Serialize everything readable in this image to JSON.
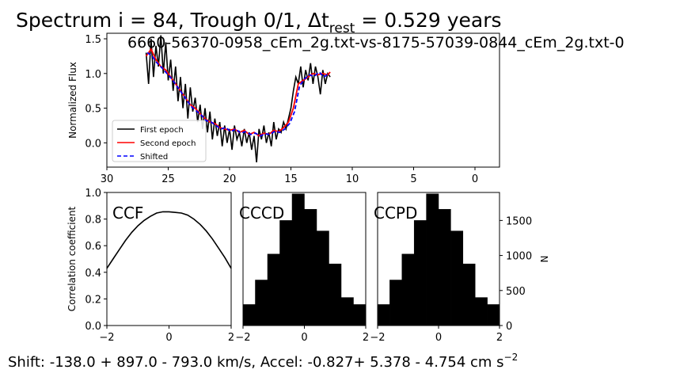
{
  "figure": {
    "title_main": "Spectrum i = 84, Trough 0/1, Δt",
    "title_sub": "rest",
    "title_tail": " = 0.529 years",
    "subtitle": "6660-56370-0958_cEm_2g.txt-vs-8175-57039-0844_cEm_2g.txt-0",
    "bottom_text": "Shift: -138.0 + 897.0 - 793.0 km/s, Accel: -0.827+ 5.378 - 4.754 cm s",
    "bottom_sup": "−2"
  },
  "chart_data": [
    {
      "type": "line",
      "id": "spectrum",
      "ylabel": "Normalized Flux",
      "xlim": [
        30,
        -2
      ],
      "ylim": [
        -0.35,
        1.58
      ],
      "xticks": [
        30,
        25,
        20,
        15,
        10,
        5,
        0
      ],
      "yticks": [
        0.0,
        0.5,
        1.0,
        1.5
      ],
      "xtick_labels": [
        "30",
        "25",
        "20",
        "15",
        "10",
        "5",
        "0"
      ],
      "ytick_labels": [
        "0.0",
        "0.5",
        "1.0",
        "1.5"
      ],
      "legend": {
        "position": "lower-left",
        "entries": [
          "First epoch",
          "Second epoch",
          "Shifted"
        ]
      },
      "series": [
        {
          "name": "First epoch",
          "color": "#000000",
          "style": "solid",
          "x": [
            26.8,
            26.6,
            26.4,
            26.2,
            26.0,
            25.8,
            25.6,
            25.4,
            25.2,
            25.0,
            24.8,
            24.6,
            24.4,
            24.2,
            24.0,
            23.8,
            23.6,
            23.4,
            23.2,
            23.0,
            22.8,
            22.6,
            22.4,
            22.2,
            22.0,
            21.8,
            21.6,
            21.4,
            21.2,
            21.0,
            20.8,
            20.6,
            20.4,
            20.2,
            20.0,
            19.8,
            19.6,
            19.4,
            19.2,
            19.0,
            18.8,
            18.6,
            18.4,
            18.2,
            18.0,
            17.8,
            17.6,
            17.4,
            17.2,
            17.0,
            16.8,
            16.6,
            16.4,
            16.2,
            16.0,
            15.8,
            15.6,
            15.4,
            15.2,
            15.0,
            14.8,
            14.6,
            14.4,
            14.2,
            14.0,
            13.8,
            13.6,
            13.4,
            13.2,
            13.0,
            12.8,
            12.6,
            12.4,
            12.2,
            12.0,
            11.8
          ],
          "y": [
            1.3,
            0.85,
            1.5,
            0.95,
            1.4,
            1.1,
            1.55,
            1.0,
            1.45,
            0.9,
            1.2,
            0.75,
            1.1,
            0.6,
            0.95,
            0.5,
            0.85,
            0.35,
            0.8,
            0.45,
            0.65,
            0.3,
            0.55,
            0.2,
            0.5,
            0.15,
            0.45,
            0.05,
            0.35,
            0.1,
            0.3,
            -0.05,
            0.25,
            0.0,
            0.2,
            -0.1,
            0.25,
            0.05,
            0.15,
            -0.05,
            0.2,
            0.0,
            0.15,
            -0.1,
            0.1,
            -0.28,
            0.2,
            0.05,
            0.25,
            0.0,
            0.15,
            -0.05,
            0.3,
            0.05,
            0.2,
            0.15,
            0.3,
            0.2,
            0.35,
            0.5,
            0.75,
            0.95,
            0.85,
            1.1,
            0.8,
            1.05,
            0.9,
            1.15,
            0.85,
            1.1,
            0.95,
            0.7,
            1.05,
            0.85,
            1.0,
            0.95
          ]
        },
        {
          "name": "Second epoch",
          "color": "#ff0000",
          "style": "solid",
          "x": [
            26.8,
            26.4,
            26.0,
            25.6,
            25.2,
            24.8,
            24.4,
            24.0,
            23.6,
            23.2,
            22.8,
            22.4,
            22.0,
            21.6,
            21.2,
            20.8,
            20.4,
            20.0,
            19.6,
            19.2,
            18.8,
            18.4,
            18.0,
            17.6,
            17.2,
            16.8,
            16.4,
            16.0,
            15.6,
            15.2,
            14.8,
            14.4,
            14.0,
            13.6,
            13.2,
            12.8,
            12.4,
            12.0,
            11.8
          ],
          "y": [
            1.25,
            1.35,
            1.2,
            1.1,
            1.05,
            0.95,
            0.85,
            0.75,
            0.65,
            0.55,
            0.5,
            0.42,
            0.35,
            0.3,
            0.28,
            0.22,
            0.2,
            0.18,
            0.2,
            0.15,
            0.18,
            0.12,
            0.15,
            0.1,
            0.14,
            0.12,
            0.18,
            0.16,
            0.22,
            0.3,
            0.5,
            0.85,
            0.9,
            0.95,
            1.0,
            0.98,
            1.0,
            0.98,
            1.02
          ]
        },
        {
          "name": "Shifted",
          "color": "#0000ff",
          "style": "dashed",
          "x": [
            26.7,
            26.3,
            25.9,
            25.5,
            25.1,
            24.7,
            24.3,
            23.9,
            23.5,
            23.1,
            22.7,
            22.3,
            21.9,
            21.5,
            21.1,
            20.7,
            20.3,
            19.9,
            19.5,
            19.1,
            18.7,
            18.3,
            17.9,
            17.5,
            17.1,
            16.7,
            16.3,
            15.9,
            15.5,
            15.1,
            14.7,
            14.3,
            13.9,
            13.5,
            13.1,
            12.7,
            12.3,
            11.9
          ],
          "y": [
            1.3,
            1.25,
            1.15,
            1.08,
            1.0,
            0.92,
            0.82,
            0.72,
            0.62,
            0.52,
            0.46,
            0.4,
            0.32,
            0.3,
            0.25,
            0.2,
            0.22,
            0.16,
            0.2,
            0.14,
            0.16,
            0.12,
            0.14,
            0.1,
            0.13,
            0.12,
            0.17,
            0.15,
            0.2,
            0.28,
            0.45,
            0.82,
            0.92,
            0.98,
            0.96,
            1.02,
            0.95,
            1.0
          ]
        }
      ]
    },
    {
      "type": "line",
      "id": "ccf",
      "panel_label": "CCF",
      "ylabel": "Correlation coefficient",
      "xlim": [
        -2,
        2
      ],
      "ylim": [
        0.0,
        1.0
      ],
      "xticks": [
        -2,
        0,
        2
      ],
      "yticks": [
        0.0,
        0.2,
        0.4,
        0.6,
        0.8,
        1.0
      ],
      "xtick_labels": [
        "−2",
        "0",
        "2"
      ],
      "ytick_labels": [
        "0.0",
        "0.2",
        "0.4",
        "0.6",
        "0.8",
        "1.0"
      ],
      "series": [
        {
          "name": "CCF",
          "color": "#000000",
          "x": [
            -2.0,
            -1.8,
            -1.6,
            -1.4,
            -1.2,
            -1.0,
            -0.8,
            -0.6,
            -0.4,
            -0.2,
            0.0,
            0.2,
            0.4,
            0.6,
            0.8,
            1.0,
            1.2,
            1.4,
            1.6,
            1.8,
            2.0
          ],
          "y": [
            0.43,
            0.5,
            0.57,
            0.64,
            0.7,
            0.75,
            0.79,
            0.82,
            0.845,
            0.855,
            0.855,
            0.85,
            0.845,
            0.83,
            0.8,
            0.76,
            0.71,
            0.65,
            0.58,
            0.51,
            0.43
          ]
        }
      ]
    },
    {
      "type": "bar",
      "id": "cccd",
      "panel_label": "CCCD",
      "xlim": [
        -2,
        2
      ],
      "xticks": [
        -2,
        0,
        2
      ],
      "xtick_labels": [
        "−2",
        "0",
        "2"
      ],
      "ymax": 1900,
      "bin_edges": [
        -2.0,
        -1.6,
        -1.2,
        -0.8,
        -0.4,
        0.0,
        0.4,
        0.8,
        1.2,
        1.6,
        2.0
      ],
      "values": [
        300,
        650,
        1020,
        1500,
        1880,
        1660,
        1350,
        880,
        400,
        300
      ]
    },
    {
      "type": "bar",
      "id": "ccpd",
      "panel_label": "CCPD",
      "ylabel": "N",
      "xlim": [
        -2,
        2
      ],
      "ylim": [
        0,
        1900
      ],
      "xticks": [
        -2,
        0,
        2
      ],
      "yticks": [
        0,
        500,
        1000,
        1500
      ],
      "xtick_labels": [
        "−2",
        "0",
        "2"
      ],
      "ytick_labels": [
        "0",
        "500",
        "1000",
        "1500"
      ],
      "bin_edges": [
        -2.0,
        -1.6,
        -1.2,
        -0.8,
        -0.4,
        0.0,
        0.4,
        0.8,
        1.2,
        1.6,
        2.0
      ],
      "values": [
        300,
        650,
        1020,
        1500,
        1880,
        1660,
        1350,
        880,
        400,
        300
      ]
    }
  ]
}
